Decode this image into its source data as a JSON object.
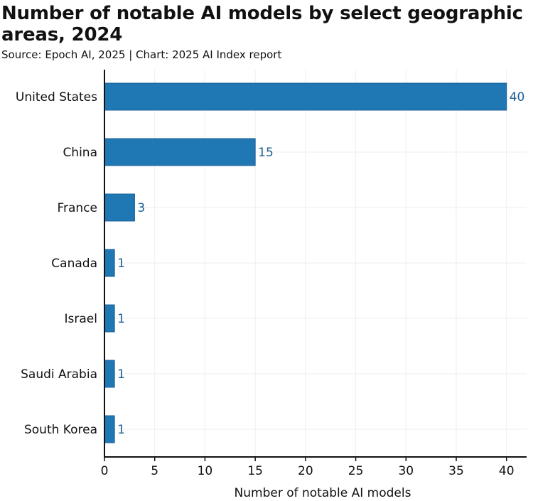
{
  "title": "Number of notable AI models by select geographic areas, 2024",
  "subtitle": "Source: Epoch AI, 2025 | Chart: 2025 AI Index report",
  "colors": {
    "bar_fill": "#1f77b4",
    "bar_stroke": "#1a5f96",
    "value_label": "#1a5f96",
    "grid": "#eeeeee",
    "axis": "#111111"
  },
  "chart_data": {
    "type": "bar",
    "orientation": "horizontal",
    "categories": [
      "United States",
      "China",
      "France",
      "Canada",
      "Israel",
      "Saudi Arabia",
      "South Korea"
    ],
    "values": [
      40,
      15,
      3,
      1,
      1,
      1,
      1
    ],
    "value_labels": [
      "40",
      "15",
      "3",
      "1",
      "1",
      "1",
      "1"
    ],
    "xlabel": "Number of notable AI models",
    "ylabel": "",
    "xlim": [
      0,
      42
    ],
    "xticks": [
      0,
      5,
      10,
      15,
      20,
      25,
      30,
      35,
      40
    ],
    "grid": true,
    "legend": "none"
  }
}
